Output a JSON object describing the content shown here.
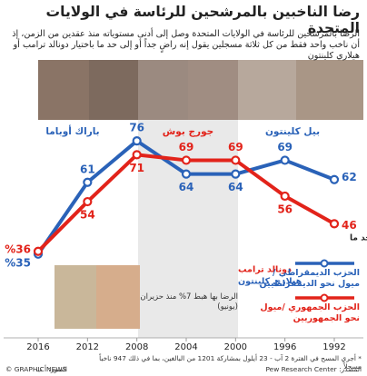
{
  "chart_data": {
    "type": "line",
    "title": "رضا الناخبين بالمرشحين للرئاسة في الولايات المتحدة",
    "subtitle": "الرضا بالمرشحين للرئاسة في الولايات المتحدة وصل إلى أدنى مستوياته منذ عقدين من الزمن، إذ أن ناخب واحد فقط من كل ثلاثة مسجلين يقول إنه راضٍ جداً أو إلى حد ما باختيار دونالد ترامب أو هيلاري كلينتون",
    "x": [
      1992,
      1996,
      2000,
      2004,
      2008,
      2012,
      2016
    ],
    "xlim": [
      1992,
      2016
    ],
    "xticks": [
      1992,
      1996,
      2000,
      2004,
      2008,
      2012,
      2016
    ],
    "x_inverted": true,
    "ylim": [
      30,
      80
    ],
    "legend_title": "نسبة الرضا: راضٍ جداً / إلى حد ما",
    "series": [
      {
        "name": "الحزب الديمقراطي /ميول نحو الديمقراطيين",
        "color": "#2a62b8",
        "values": [
          62,
          69,
          64,
          64,
          76,
          61,
          35
        ],
        "value_labels": [
          "62",
          "69",
          "64",
          "64",
          "76",
          "61",
          "%35"
        ]
      },
      {
        "name": "الحزب الجمهوري /ميول نحو الجمهوريين",
        "color": "#e2231a",
        "values": [
          46,
          56,
          69,
          69,
          71,
          54,
          36
        ],
        "value_labels": [
          "46",
          "56",
          "69",
          "69",
          "71",
          "54",
          "%36"
        ]
      }
    ],
    "candidates": [
      "بيل كلينتون",
      "جورج بوش",
      "باراك أوباما"
    ],
    "annotations": [
      "دونالد ترامب",
      "هيلاري كلينتون",
      "الرضا بها هبط 7% منذ حزيران (يونيو)"
    ],
    "footnote": "* أجري المسح في الفترة 2 آب - 23 أيلول بمشاركة 1201 من البالغين، بما في ذلك 947 ناخباً مسجلاً",
    "source": "المصدر: Pew Research Center",
    "photo_credit": "الصور: أ ب",
    "copyright": "© GRAPHIC NEWS"
  }
}
